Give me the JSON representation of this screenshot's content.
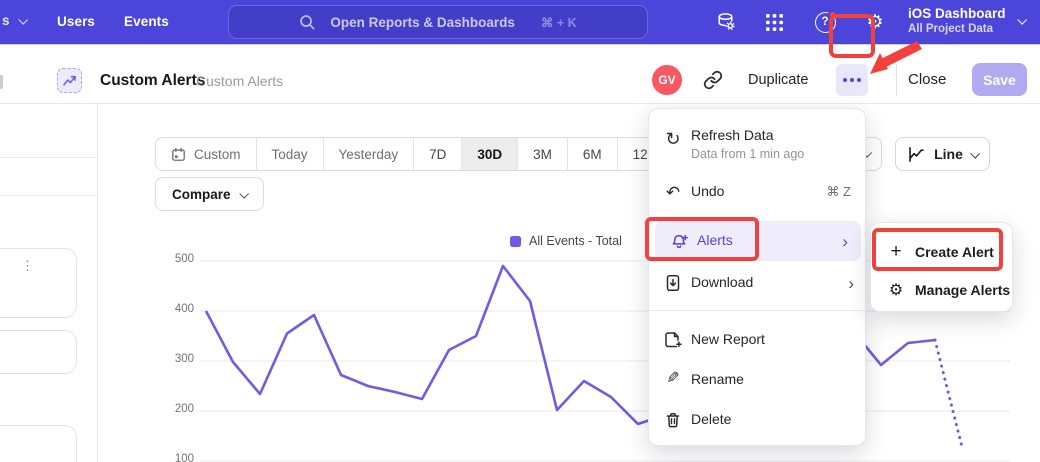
{
  "topnav": {
    "partial_nav_label": "s",
    "nav_items": [
      "Users",
      "Events"
    ],
    "search_placeholder": "Open Reports & Dashboards",
    "search_shortcut": "⌘ + K",
    "icon_names": [
      "database-icon",
      "apps-grid-icon",
      "help-icon",
      "gear-icon"
    ],
    "help_glyph": "?",
    "project_name": "iOS Dashboard",
    "project_scope": "All Project Data"
  },
  "header": {
    "title": "Custom Alerts",
    "breadcrumb": "Custom Alerts",
    "avatar_initials": "GV",
    "duplicate_label": "Duplicate",
    "close_label": "Close",
    "save_label": "Save"
  },
  "toolbar": {
    "ranges": [
      "Custom",
      "Today",
      "Yesterday",
      "7D",
      "30D",
      "3M",
      "6M",
      "12M"
    ],
    "selected_range": "30D",
    "compare_label": "Compare",
    "chart_type_label": "Line"
  },
  "sidebar": {
    "kebab_glyph": "⋮"
  },
  "menu": {
    "items": [
      {
        "label": "Refresh Data",
        "subtitle": "Data from 1 min ago",
        "icon": "refresh-icon",
        "glyph": "↻"
      },
      {
        "label": "Undo",
        "shortcut": "⌘ Z",
        "icon": "undo-icon",
        "glyph": "↶"
      },
      {
        "label": "Alerts",
        "icon": "bell-plus-icon",
        "has_submenu": true,
        "highlighted": true,
        "arrow": "›"
      },
      {
        "label": "Download",
        "icon": "download-icon",
        "has_submenu": true,
        "arrow": "›"
      },
      {
        "label": "New Report",
        "icon": "new-report-icon"
      },
      {
        "label": "Rename",
        "icon": "pencil-icon",
        "glyph": "✎"
      },
      {
        "label": "Delete",
        "icon": "trash-icon"
      }
    ]
  },
  "submenu": {
    "items": [
      {
        "label": "Create Alert",
        "icon": "plus-icon",
        "glyph": "+"
      },
      {
        "label": "Manage Alerts",
        "icon": "gear-icon",
        "glyph": "⚙"
      }
    ]
  },
  "chart_data": {
    "type": "line",
    "legend": "All Events - Total",
    "legend_position": "top-right",
    "grid": "horizontal",
    "yticks": [
      500,
      400,
      300,
      200,
      100
    ],
    "ylim": [
      100,
      520
    ],
    "x_unit": "day (30D range, x-axis labels not visible)",
    "series": [
      {
        "name": "All Events - Total",
        "color": "#6C5CE7",
        "values": [
          400,
          298,
          234,
          355,
          392,
          272,
          250,
          238,
          224,
          322,
          350,
          490,
          420,
          202,
          260,
          228,
          174,
          192,
          240,
          295,
          340,
          355,
          350,
          350,
          358,
          292,
          336,
          342,
          128
        ],
        "dashed_from_index": 27
      }
    ]
  },
  "colors": {
    "nav_bg": "#4B46D9",
    "line": "#6C5CE7",
    "annotation_red": "#F2413D",
    "save_bg": "#B1AAF1",
    "avatar_bg": "#F85862",
    "menu_highlight_bg": "#EFECFC",
    "menu_highlight_text": "#5247D0"
  }
}
